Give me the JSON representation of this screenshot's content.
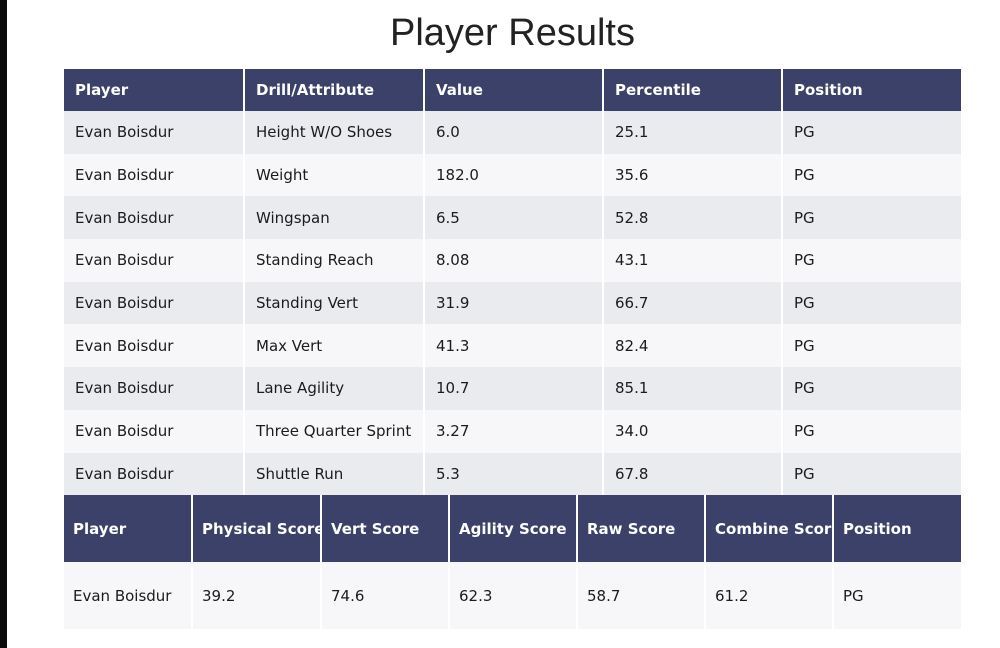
{
  "title": "Player Results",
  "results_table": {
    "headers": [
      "Player",
      "Drill/Attribute",
      "Value",
      "Percentile",
      "Position"
    ],
    "rows": [
      [
        "Evan Boisdur",
        "Height W/O Shoes",
        "6.0",
        "25.1",
        "PG"
      ],
      [
        "Evan Boisdur",
        "Weight",
        "182.0",
        "35.6",
        "PG"
      ],
      [
        "Evan Boisdur",
        "Wingspan",
        "6.5",
        "52.8",
        "PG"
      ],
      [
        "Evan Boisdur",
        "Standing Reach",
        "8.08",
        "43.1",
        "PG"
      ],
      [
        "Evan Boisdur",
        "Standing Vert",
        "31.9",
        "66.7",
        "PG"
      ],
      [
        "Evan Boisdur",
        "Max Vert",
        "41.3",
        "82.4",
        "PG"
      ],
      [
        "Evan Boisdur",
        "Lane Agility",
        "10.7",
        "85.1",
        "PG"
      ],
      [
        "Evan Boisdur",
        "Three Quarter Sprint",
        "3.27",
        "34.0",
        "PG"
      ],
      [
        "Evan Boisdur",
        "Shuttle Run",
        "5.3",
        "67.8",
        "PG"
      ]
    ]
  },
  "scores_table": {
    "headers": [
      "Player",
      "Physical Score",
      "Vert Score",
      "Agility Score",
      "Raw Score",
      "Combine Score",
      "Position"
    ],
    "rows": [
      [
        "Evan Boisdur",
        "39.2",
        "74.6",
        "62.3",
        "58.7",
        "61.2",
        "PG"
      ]
    ]
  }
}
